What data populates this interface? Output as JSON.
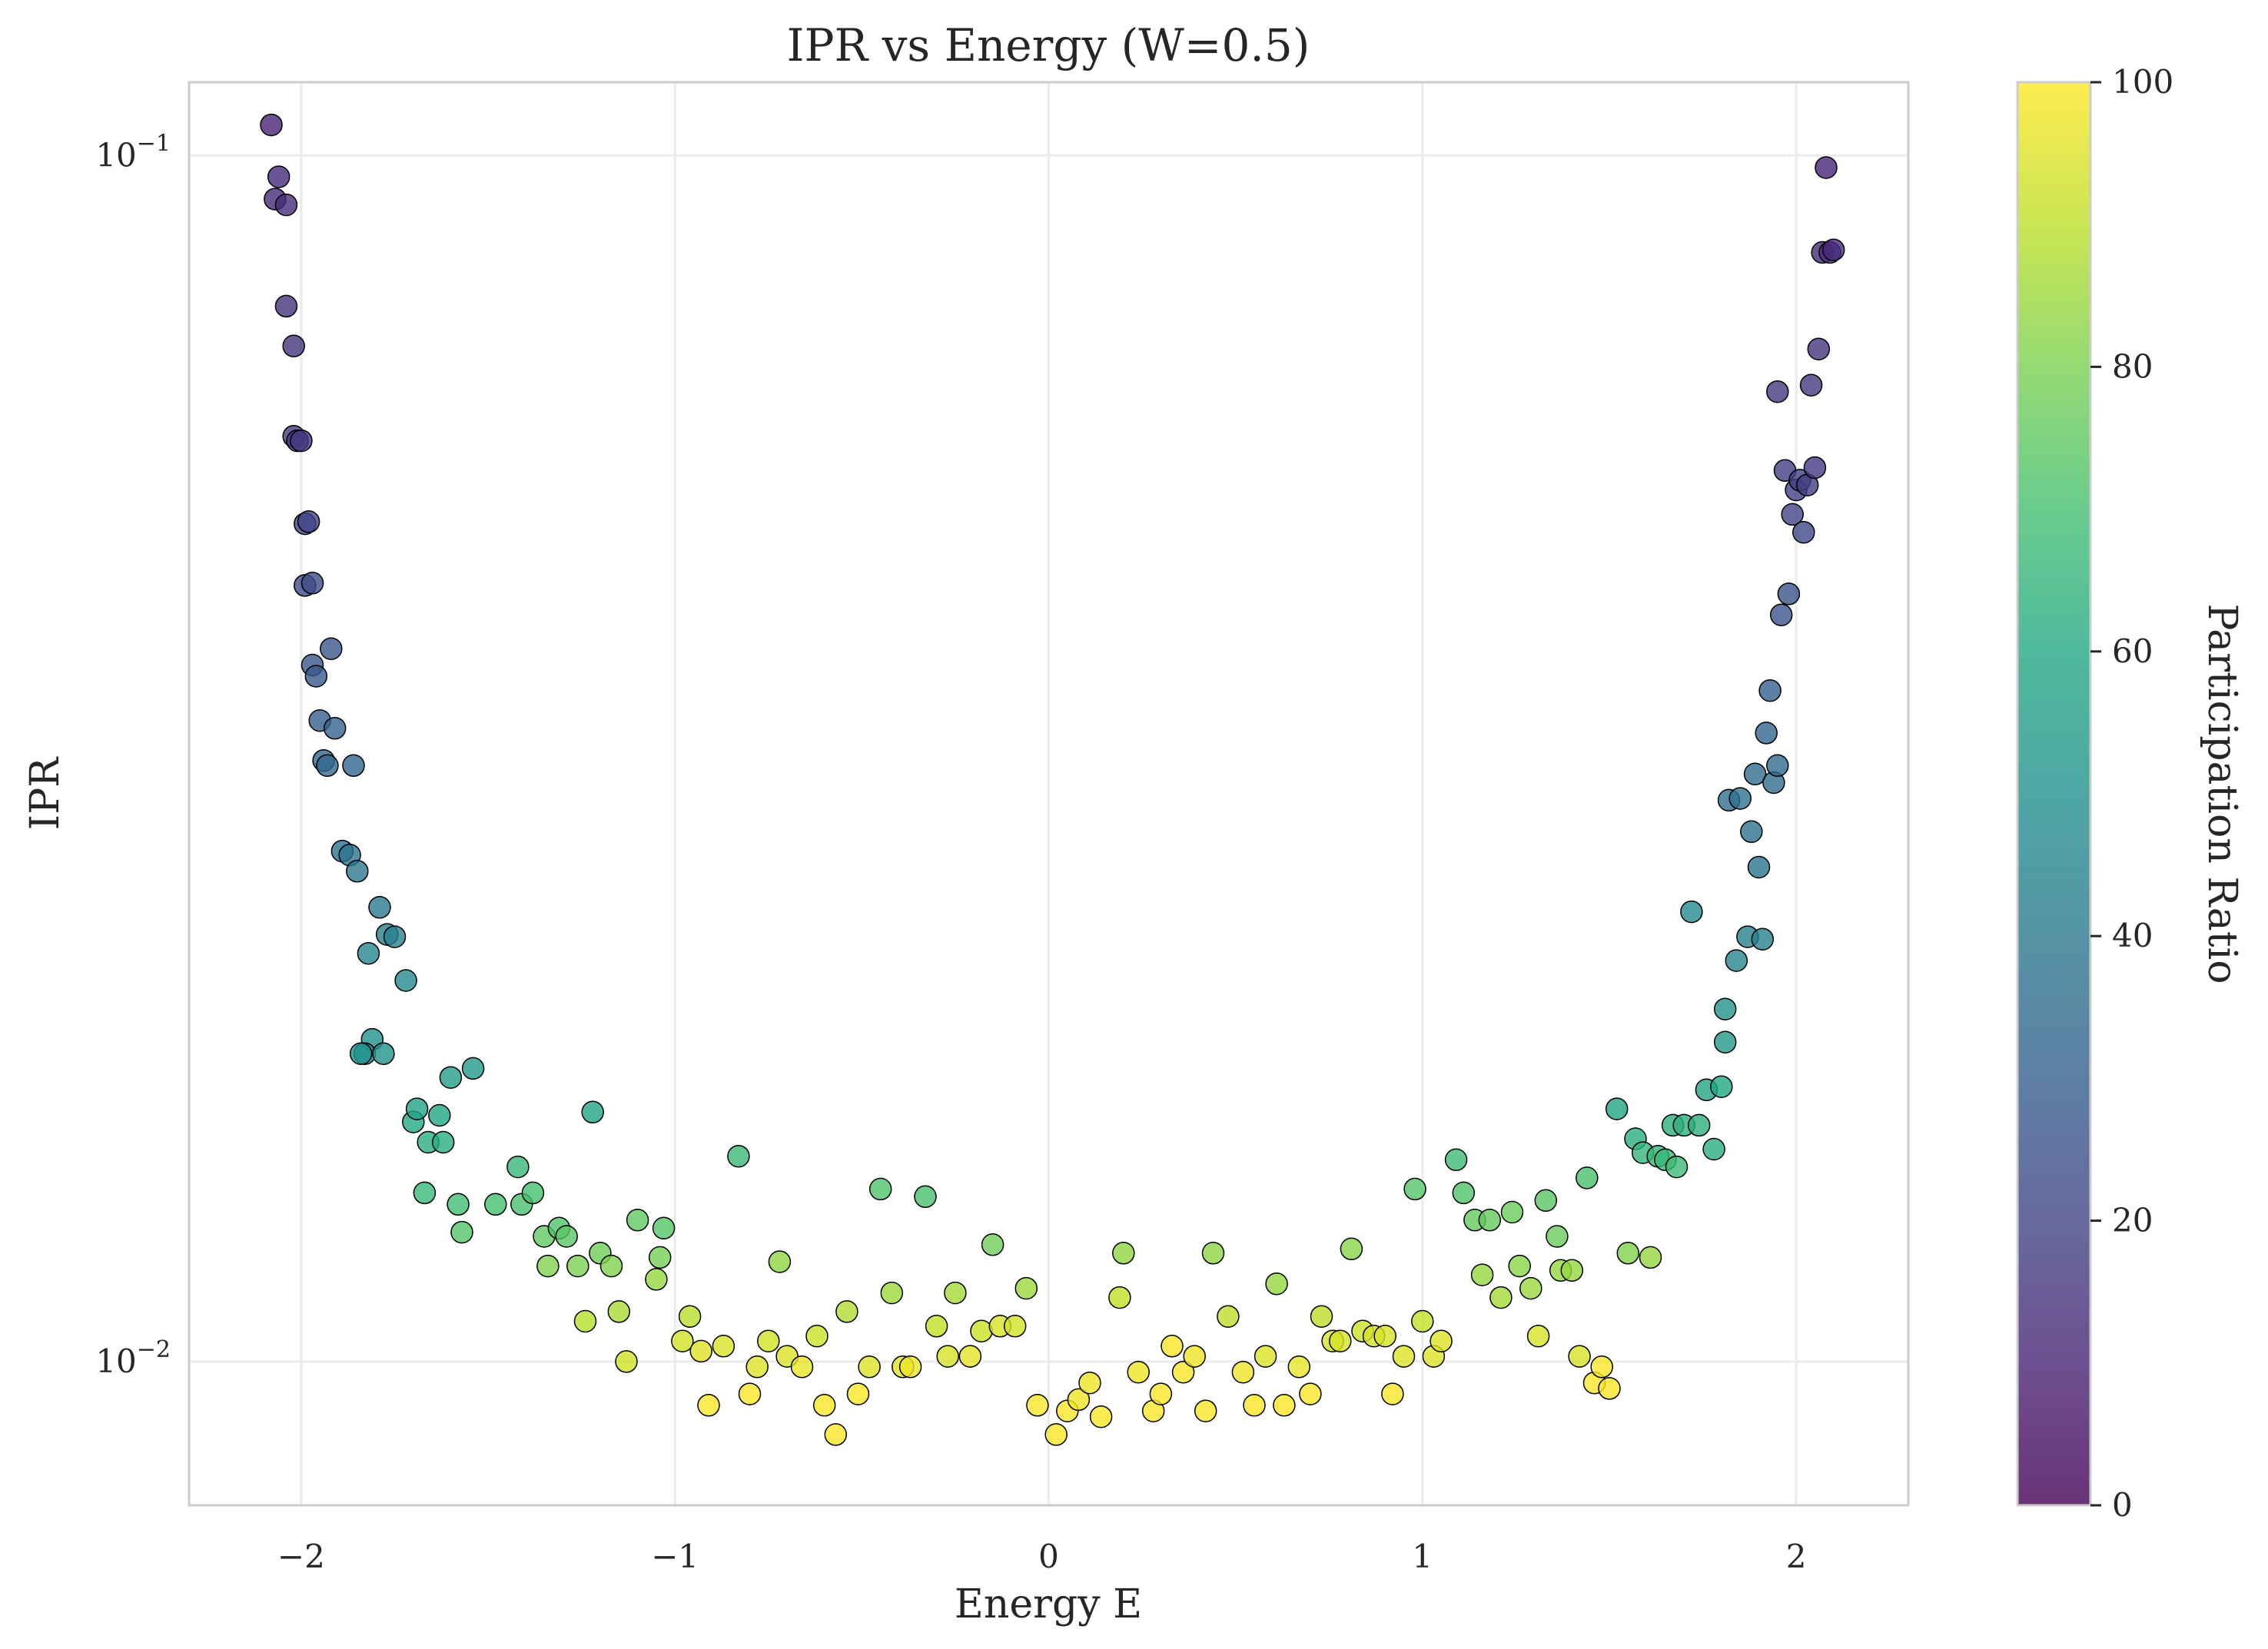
{
  "chart_data": {
    "type": "scatter",
    "title": "IPR vs Energy (W=0.5)",
    "xlabel": "Energy E",
    "ylabel": "IPR",
    "colorbar_label": "Participation Ratio",
    "xlim": [
      -2.3,
      2.3
    ],
    "ylim": [
      0.0076,
      0.115
    ],
    "yscale": "log",
    "clim": [
      0,
      100
    ],
    "colormap": "viridis",
    "grid": true,
    "x_ticks": [
      -2,
      -1,
      0,
      1,
      2
    ],
    "x_tick_labels": [
      "−2",
      "−1",
      "0",
      "1",
      "2"
    ],
    "y_ticks": [
      0.01,
      0.1
    ],
    "y_tick_labels": [
      {
        "base": "10",
        "exp": "−2"
      },
      {
        "base": "10",
        "exp": "−1"
      }
    ],
    "c_ticks": [
      0,
      20,
      40,
      60,
      80,
      100
    ],
    "c_tick_labels": [
      "0",
      "20",
      "40",
      "60",
      "80",
      "100"
    ],
    "points": [
      [
        -2.08,
        0.106
      ],
      [
        -2.07,
        0.092
      ],
      [
        -2.06,
        0.096
      ],
      [
        -2.04,
        0.091
      ],
      [
        -2.04,
        0.075
      ],
      [
        -2.02,
        0.0695
      ],
      [
        -2.02,
        0.0585
      ],
      [
        -2.01,
        0.058
      ],
      [
        -2.0,
        0.058
      ],
      [
        -1.99,
        0.0495
      ],
      [
        -1.98,
        0.0497
      ],
      [
        -1.99,
        0.044
      ],
      [
        -1.97,
        0.0442
      ],
      [
        -1.97,
        0.0378
      ],
      [
        -1.96,
        0.037
      ],
      [
        -1.95,
        0.034
      ],
      [
        -1.94,
        0.0315
      ],
      [
        -1.93,
        0.0312
      ],
      [
        -1.92,
        0.039
      ],
      [
        -1.91,
        0.0335
      ],
      [
        -1.89,
        0.0265
      ],
      [
        -1.87,
        0.0263
      ],
      [
        -1.86,
        0.0312
      ],
      [
        -1.85,
        0.0255
      ],
      [
        -1.82,
        0.0218
      ],
      [
        -1.81,
        0.0185
      ],
      [
        -1.79,
        0.0238
      ],
      [
        -1.77,
        0.0226
      ],
      [
        -1.75,
        0.0225
      ],
      [
        -1.72,
        0.0207
      ],
      [
        -1.83,
        0.018
      ],
      [
        -1.84,
        0.018
      ],
      [
        -1.78,
        0.018
      ],
      [
        -1.7,
        0.0158
      ],
      [
        -1.69,
        0.0162
      ],
      [
        -1.66,
        0.0152
      ],
      [
        -1.67,
        0.0138
      ],
      [
        -1.63,
        0.016
      ],
      [
        -1.62,
        0.0152
      ],
      [
        -1.6,
        0.0172
      ],
      [
        -1.58,
        0.0135
      ],
      [
        -1.57,
        0.0128
      ],
      [
        -1.54,
        0.0175
      ],
      [
        -1.48,
        0.0135
      ],
      [
        -1.42,
        0.0145
      ],
      [
        -1.41,
        0.0135
      ],
      [
        -1.38,
        0.0138
      ],
      [
        -1.35,
        0.0127
      ],
      [
        -1.34,
        0.012
      ],
      [
        -1.31,
        0.0129
      ],
      [
        -1.29,
        0.0127
      ],
      [
        -1.26,
        0.012
      ],
      [
        -1.24,
        0.0108
      ],
      [
        -1.22,
        0.0161
      ],
      [
        -1.2,
        0.0123
      ],
      [
        -1.17,
        0.012
      ],
      [
        -1.15,
        0.011
      ],
      [
        -1.13,
        0.01
      ],
      [
        -1.1,
        0.0131
      ],
      [
        -1.05,
        0.0117
      ],
      [
        -1.04,
        0.0122
      ],
      [
        -1.03,
        0.0129
      ],
      [
        -0.98,
        0.0104
      ],
      [
        -0.96,
        0.0109
      ],
      [
        -0.93,
        0.0102
      ],
      [
        -0.91,
        0.0092
      ],
      [
        -0.87,
        0.0103
      ],
      [
        -0.83,
        0.0148
      ],
      [
        -0.8,
        0.0094
      ],
      [
        -0.78,
        0.0099
      ],
      [
        -0.75,
        0.0104
      ],
      [
        -0.72,
        0.0121
      ],
      [
        -0.7,
        0.0101
      ],
      [
        -0.66,
        0.0099
      ],
      [
        -0.62,
        0.0105
      ],
      [
        -0.6,
        0.0092
      ],
      [
        -0.57,
        0.0087
      ],
      [
        -0.54,
        0.011
      ],
      [
        -0.51,
        0.0094
      ],
      [
        -0.48,
        0.0099
      ],
      [
        -0.45,
        0.0139
      ],
      [
        -0.42,
        0.0114
      ],
      [
        -0.39,
        0.0099
      ],
      [
        -0.37,
        0.0099
      ],
      [
        -0.33,
        0.0137
      ],
      [
        -0.3,
        0.0107
      ],
      [
        -0.27,
        0.0101
      ],
      [
        -0.25,
        0.0114
      ],
      [
        -0.21,
        0.0101
      ],
      [
        -0.18,
        0.0106
      ],
      [
        -0.15,
        0.0125
      ],
      [
        -0.13,
        0.0107
      ],
      [
        -0.09,
        0.0107
      ],
      [
        -0.06,
        0.0115
      ],
      [
        -0.03,
        0.0092
      ],
      [
        0.02,
        0.0087
      ],
      [
        0.05,
        0.0091
      ],
      [
        0.08,
        0.0093
      ],
      [
        0.11,
        0.0096
      ],
      [
        0.14,
        0.009
      ],
      [
        0.19,
        0.0113
      ],
      [
        0.2,
        0.0123
      ],
      [
        0.24,
        0.0098
      ],
      [
        0.28,
        0.0091
      ],
      [
        0.3,
        0.0094
      ],
      [
        0.33,
        0.0103
      ],
      [
        0.36,
        0.0098
      ],
      [
        0.39,
        0.0101
      ],
      [
        0.42,
        0.0091
      ],
      [
        0.44,
        0.0123
      ],
      [
        0.48,
        0.0109
      ],
      [
        0.52,
        0.0098
      ],
      [
        0.55,
        0.0092
      ],
      [
        0.58,
        0.0101
      ],
      [
        0.61,
        0.0116
      ],
      [
        0.63,
        0.0092
      ],
      [
        0.67,
        0.0099
      ],
      [
        0.7,
        0.0094
      ],
      [
        0.73,
        0.0109
      ],
      [
        0.76,
        0.0104
      ],
      [
        0.78,
        0.0104
      ],
      [
        0.81,
        0.0124
      ],
      [
        0.84,
        0.0106
      ],
      [
        0.87,
        0.0105
      ],
      [
        0.9,
        0.0105
      ],
      [
        0.92,
        0.0094
      ],
      [
        0.95,
        0.0101
      ],
      [
        0.98,
        0.0139
      ],
      [
        1.0,
        0.0108
      ],
      [
        1.03,
        0.0101
      ],
      [
        1.05,
        0.0104
      ],
      [
        1.09,
        0.0147
      ],
      [
        1.11,
        0.0138
      ],
      [
        1.14,
        0.0131
      ],
      [
        1.16,
        0.0118
      ],
      [
        1.18,
        0.0131
      ],
      [
        1.21,
        0.0113
      ],
      [
        1.24,
        0.0133
      ],
      [
        1.26,
        0.012
      ],
      [
        1.29,
        0.0115
      ],
      [
        1.31,
        0.0105
      ],
      [
        1.33,
        0.0136
      ],
      [
        1.36,
        0.0127
      ],
      [
        1.37,
        0.0119
      ],
      [
        1.4,
        0.0119
      ],
      [
        1.42,
        0.0101
      ],
      [
        1.44,
        0.0142
      ],
      [
        1.46,
        0.0096
      ],
      [
        1.48,
        0.0099
      ],
      [
        1.5,
        0.0095
      ],
      [
        1.52,
        0.0162
      ],
      [
        1.55,
        0.0123
      ],
      [
        1.57,
        0.0153
      ],
      [
        1.59,
        0.0149
      ],
      [
        1.61,
        0.0122
      ],
      [
        1.63,
        0.0148
      ],
      [
        1.65,
        0.0147
      ],
      [
        1.67,
        0.0157
      ],
      [
        1.68,
        0.0145
      ],
      [
        1.7,
        0.0157
      ],
      [
        1.72,
        0.0236
      ],
      [
        1.74,
        0.0157
      ],
      [
        1.76,
        0.0168
      ],
      [
        1.78,
        0.015
      ],
      [
        1.8,
        0.0169
      ],
      [
        1.81,
        0.0196
      ],
      [
        1.81,
        0.0184
      ],
      [
        1.82,
        0.0292
      ],
      [
        1.84,
        0.0215
      ],
      [
        1.85,
        0.0293
      ],
      [
        1.87,
        0.0225
      ],
      [
        1.88,
        0.0275
      ],
      [
        1.89,
        0.0307
      ],
      [
        1.9,
        0.0257
      ],
      [
        1.91,
        0.0224
      ],
      [
        1.92,
        0.0332
      ],
      [
        1.93,
        0.036
      ],
      [
        1.94,
        0.0302
      ],
      [
        1.95,
        0.0312
      ],
      [
        1.95,
        0.0637
      ],
      [
        1.96,
        0.0416
      ],
      [
        1.97,
        0.0548
      ],
      [
        1.98,
        0.0433
      ],
      [
        1.99,
        0.0504
      ],
      [
        2.0,
        0.0528
      ],
      [
        2.01,
        0.0538
      ],
      [
        2.02,
        0.0487
      ],
      [
        2.03,
        0.0533
      ],
      [
        2.04,
        0.0645
      ],
      [
        2.05,
        0.0551
      ],
      [
        2.06,
        0.0691
      ],
      [
        2.07,
        0.0831
      ],
      [
        2.08,
        0.0977
      ],
      [
        2.09,
        0.0831
      ],
      [
        2.1,
        0.0835
      ]
    ],
    "colors": [
      10,
      12,
      12,
      12,
      14,
      15,
      17,
      17,
      17,
      20,
      20,
      23,
      23,
      27,
      28,
      30,
      33,
      33,
      27,
      31,
      38,
      38,
      33,
      40,
      45,
      50,
      41,
      43,
      43,
      47,
      50,
      50,
      50,
      60,
      58,
      62,
      67,
      59,
      62,
      55,
      69,
      73,
      54,
      70,
      66,
      71,
      70,
      75,
      81,
      72,
      74,
      80,
      89,
      58,
      78,
      81,
      87,
      93,
      75,
      84,
      79,
      73,
      93,
      89,
      95,
      99,
      94,
      67,
      99,
      95,
      93,
      83,
      95,
      97,
      92,
      99,
      99,
      88,
      100,
      95,
      72,
      85,
      96,
      97,
      71,
      91,
      94,
      86,
      96,
      92,
      78,
      94,
      93,
      85,
      99,
      99,
      99,
      98,
      98,
      99,
      91,
      83,
      98,
      99,
      99,
      99,
      99,
      98,
      99,
      83,
      90,
      98,
      99,
      95,
      84,
      99,
      97,
      99,
      90,
      94,
      94,
      82,
      92,
      94,
      94,
      99,
      95,
      73,
      91,
      95,
      95,
      68,
      72,
      76,
      84,
      76,
      86,
      77,
      82,
      85,
      94,
      74,
      77,
      84,
      84,
      94,
      71,
      99,
      99,
      99,
      58,
      81,
      62,
      65,
      84,
      66,
      66,
      63,
      68,
      63,
      47,
      63,
      58,
      62,
      59,
      50,
      53,
      37,
      46,
      37,
      43,
      38,
      35,
      39,
      43,
      33,
      30,
      35,
      34,
      16,
      26,
      18,
      25,
      20,
      19,
      18,
      22,
      18,
      16,
      17,
      15,
      12,
      10,
      12,
      12
    ]
  }
}
